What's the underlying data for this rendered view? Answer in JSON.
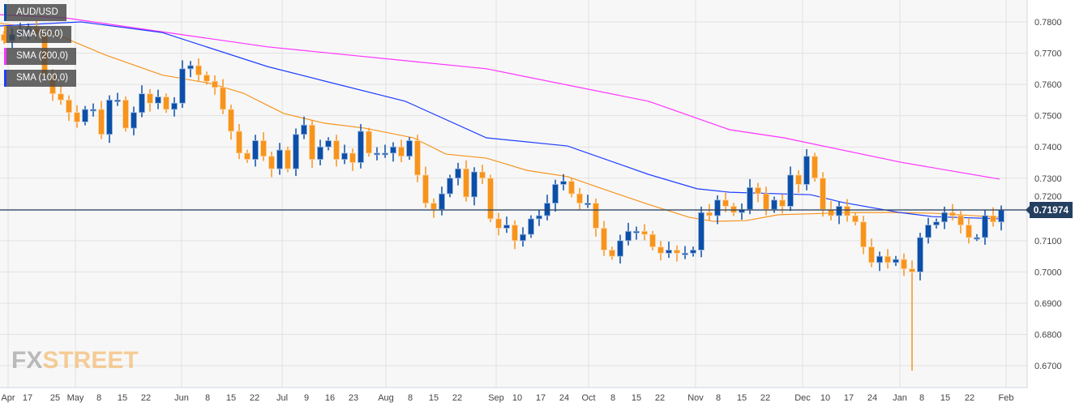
{
  "chart_data": {
    "type": "candlestick",
    "title": "AUD/USD",
    "legend": [
      {
        "label": "AUD/USD",
        "color": "#0b4fa8"
      },
      {
        "label": "SMA (50,0)",
        "color": "#f7941d"
      },
      {
        "label": "SMA (200,0)",
        "color": "#ff33ff"
      },
      {
        "label": "SMA (100,0)",
        "color": "#1f3fff"
      }
    ],
    "legend_placement": "top-left",
    "current_price": "0.71974",
    "bull_color": "#0b4fa8",
    "bear_color": "#f7941d",
    "first_open": 0.776,
    "closes": [
      0.774,
      0.776,
      0.777,
      0.778,
      0.776,
      0.763,
      0.757,
      0.755,
      0.751,
      0.748,
      0.752,
      0.752,
      0.744,
      0.755,
      0.755,
      0.746,
      0.751,
      0.757,
      0.754,
      0.756,
      0.752,
      0.754,
      0.765,
      0.766,
      0.763,
      0.761,
      0.759,
      0.752,
      0.745,
      0.738,
      0.736,
      0.742,
      0.737,
      0.733,
      0.739,
      0.733,
      0.744,
      0.747,
      0.736,
      0.74,
      0.742,
      0.736,
      0.738,
      0.735,
      0.745,
      0.738,
      0.738,
      0.738,
      0.74,
      0.737,
      0.742,
      0.731,
      0.722,
      0.72,
      0.725,
      0.73,
      0.733,
      0.724,
      0.732,
      0.73,
      0.717,
      0.714,
      0.715,
      0.71,
      0.712,
      0.717,
      0.718,
      0.722,
      0.728,
      0.729,
      0.725,
      0.722,
      0.722,
      0.714,
      0.707,
      0.705,
      0.71,
      0.713,
      0.713,
      0.712,
      0.708,
      0.706,
      0.707,
      0.706,
      0.706,
      0.707,
      0.719,
      0.718,
      0.723,
      0.721,
      0.719,
      0.72,
      0.727,
      0.725,
      0.72,
      0.723,
      0.721,
      0.731,
      0.728,
      0.737,
      0.73,
      0.72,
      0.718,
      0.721,
      0.718,
      0.716,
      0.708,
      0.703,
      0.705,
      0.703,
      0.704,
      0.701,
      0.7,
      0.711,
      0.715,
      0.716,
      0.719,
      0.718,
      0.715,
      0.711,
      0.711,
      0.718,
      0.716,
      0.71974
    ],
    "notable_low": {
      "index": 112,
      "low": 0.6684
    },
    "sma": [
      {
        "name": "SMA (50,0)",
        "color": "#f7941d",
        "points": [
          [
            -0.5,
            0.7795
          ],
          [
            4.5,
            0.778
          ],
          [
            9.5,
            0.7727
          ],
          [
            12.5,
            0.7694
          ],
          [
            19.5,
            0.763
          ],
          [
            25.5,
            0.7603
          ],
          [
            29.5,
            0.7572
          ],
          [
            34.5,
            0.7507
          ],
          [
            39.5,
            0.7476
          ],
          [
            44.5,
            0.746
          ],
          [
            50.5,
            0.7429
          ],
          [
            54.5,
            0.7377
          ],
          [
            59.5,
            0.7364
          ],
          [
            64.5,
            0.7325
          ],
          [
            69.5,
            0.7305
          ],
          [
            74.5,
            0.726
          ],
          [
            79.5,
            0.7216
          ],
          [
            84.5,
            0.7175
          ],
          [
            87.5,
            0.7162
          ],
          [
            91.5,
            0.7164
          ],
          [
            95.5,
            0.7183
          ],
          [
            99.5,
            0.7186
          ],
          [
            104.5,
            0.719
          ],
          [
            109.5,
            0.719
          ],
          [
            114.5,
            0.7188
          ],
          [
            122.8,
            0.7175
          ]
        ]
      },
      {
        "name": "SMA (200,0)",
        "color": "#ff33ff",
        "points": [
          [
            -0.5,
            0.7823
          ],
          [
            7.5,
            0.7813
          ],
          [
            32.5,
            0.772
          ],
          [
            59.5,
            0.765
          ],
          [
            79.5,
            0.7546
          ],
          [
            89.5,
            0.7455
          ],
          [
            96.2,
            0.7429
          ],
          [
            110.6,
            0.7351
          ],
          [
            122.8,
            0.7297
          ]
        ]
      },
      {
        "name": "SMA (100,0)",
        "color": "#1f3fff",
        "points": [
          [
            -0.5,
            0.7787
          ],
          [
            9.5,
            0.78
          ],
          [
            19.5,
            0.7766
          ],
          [
            32.5,
            0.7657
          ],
          [
            39.5,
            0.7611
          ],
          [
            49.5,
            0.7546
          ],
          [
            59.5,
            0.7429
          ],
          [
            69.5,
            0.7403
          ],
          [
            79.5,
            0.7312
          ],
          [
            85.5,
            0.7266
          ],
          [
            89.5,
            0.7255
          ],
          [
            99.5,
            0.7247
          ],
          [
            103.5,
            0.7222
          ],
          [
            110.5,
            0.719
          ],
          [
            114.5,
            0.7177
          ],
          [
            122.8,
            0.717
          ]
        ]
      }
    ],
    "ylim": [
      0.665,
      0.7825
    ],
    "yticks": [
      "0.6700",
      "0.6800",
      "0.6900",
      "0.7000",
      "0.7100",
      "0.7200",
      "0.7300",
      "0.7400",
      "0.7500",
      "0.7600",
      "0.7700",
      "0.7800"
    ],
    "xticks": [
      {
        "label": "Apr",
        "i": 0.5,
        "month": true
      },
      {
        "label": "17",
        "i": 2.9
      },
      {
        "label": "25",
        "i": 6.3
      },
      {
        "label": "May",
        "i": 8.8,
        "month": true
      },
      {
        "label": "8",
        "i": 11.7
      },
      {
        "label": "15",
        "i": 14.6
      },
      {
        "label": "22",
        "i": 17.5
      },
      {
        "label": "Jun",
        "i": 21.9,
        "month": true
      },
      {
        "label": "8",
        "i": 25.1
      },
      {
        "label": "15",
        "i": 28
      },
      {
        "label": "22",
        "i": 30.9
      },
      {
        "label": "Jul",
        "i": 34.3,
        "month": true
      },
      {
        "label": "9",
        "i": 37.3
      },
      {
        "label": "16",
        "i": 40.2
      },
      {
        "label": "23",
        "i": 43.1
      },
      {
        "label": "Aug",
        "i": 47.1,
        "month": true
      },
      {
        "label": "8",
        "i": 50.1
      },
      {
        "label": "15",
        "i": 53
      },
      {
        "label": "22",
        "i": 55.9
      },
      {
        "label": "Sep",
        "i": 60.7,
        "month": true
      },
      {
        "label": "10",
        "i": 63.3
      },
      {
        "label": "17",
        "i": 66.2
      },
      {
        "label": "24",
        "i": 69.1
      },
      {
        "label": "Oct",
        "i": 72.1,
        "month": true
      },
      {
        "label": "8",
        "i": 75.1
      },
      {
        "label": "15",
        "i": 78
      },
      {
        "label": "22",
        "i": 80.9
      },
      {
        "label": "Nov",
        "i": 85.3,
        "month": true
      },
      {
        "label": "8",
        "i": 88.1
      },
      {
        "label": "15",
        "i": 91
      },
      {
        "label": "22",
        "i": 93.9
      },
      {
        "label": "Dec",
        "i": 98.5,
        "month": true
      },
      {
        "label": "10",
        "i": 101.3
      },
      {
        "label": "17",
        "i": 104.2
      },
      {
        "label": "24",
        "i": 107.1
      },
      {
        "label": "Jan",
        "i": 110.5,
        "month": true
      },
      {
        "label": "8",
        "i": 113.2
      },
      {
        "label": "15",
        "i": 116.1
      },
      {
        "label": "22",
        "i": 119.1
      },
      {
        "label": "Feb",
        "i": 123.6,
        "month": true
      }
    ],
    "grid": true
  },
  "logo": {
    "fx": "FX",
    "street": "STREET"
  }
}
